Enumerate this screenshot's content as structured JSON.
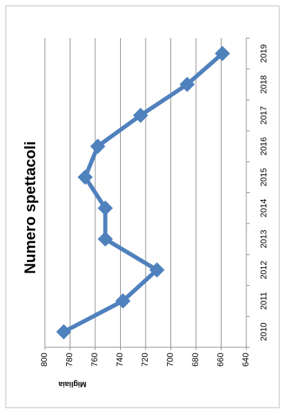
{
  "chart_data": {
    "type": "line",
    "title": "Numero spettacoli",
    "y_label": "Migliaia",
    "categories": [
      "2010",
      "2011",
      "2012",
      "2013",
      "2014",
      "2015",
      "2016",
      "2017",
      "2018",
      "2019"
    ],
    "series": [
      {
        "name": "Numero spettacoli",
        "color": "#4f81bd",
        "values": [
          785,
          738,
          711,
          752,
          752,
          768,
          758,
          724,
          687,
          659
        ]
      }
    ],
    "ylim": [
      640,
      800
    ],
    "yticks": [
      640,
      660,
      680,
      700,
      720,
      740,
      760,
      780,
      800
    ],
    "grid": true
  }
}
